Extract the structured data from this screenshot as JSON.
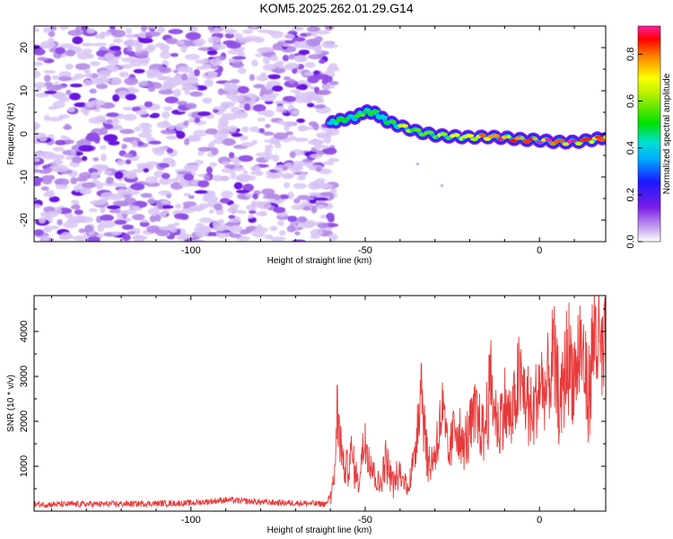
{
  "title": "KOM5.2025.262.01.29.G14",
  "chart_data": [
    {
      "type": "heatmap",
      "xlabel": "Height of straight line (km)",
      "ylabel": "Frequency (Hz)",
      "xlim": [
        -145,
        19
      ],
      "ylim": [
        -25,
        25
      ],
      "xticks": [
        -100,
        -50,
        0
      ],
      "yticks": [
        -20,
        -10,
        0,
        10,
        20
      ],
      "colorbar": {
        "label": "Normalized spectral amplitude",
        "range": [
          0.0,
          0.92
        ],
        "ticks": [
          0.0,
          0.2,
          0.4,
          0.6,
          0.8
        ],
        "tick_labels": [
          "0.0",
          "0.2",
          "0.4",
          "0.6",
          "0.8"
        ]
      },
      "noise_region_x": [
        -145,
        -60
      ],
      "signal_onset_x": -60,
      "ridge": {
        "x": [
          -60,
          -57,
          -53,
          -50,
          -47,
          -44,
          -40,
          -35,
          -30,
          -25,
          -20,
          -15,
          -10,
          -5,
          0,
          5,
          10,
          15,
          19
        ],
        "y": [
          2.5,
          3.2,
          3.8,
          5.2,
          4.8,
          3.0,
          1.8,
          0.5,
          -0.3,
          -0.6,
          -0.8,
          -0.7,
          -0.9,
          -1.3,
          -1.5,
          -1.9,
          -1.9,
          -1.4,
          -0.8
        ],
        "amplitude": [
          0.45,
          0.55,
          0.5,
          0.6,
          0.5,
          0.55,
          0.6,
          0.7,
          0.75,
          0.65,
          0.8,
          0.85,
          0.85,
          0.8,
          0.9,
          0.85,
          0.85,
          0.9,
          0.85
        ]
      },
      "scattered_points": [
        [
          -35,
          -7
        ],
        [
          -28,
          -12
        ]
      ]
    },
    {
      "type": "line",
      "xlabel": "Height of straight line (km)",
      "ylabel": "SNR (10 * v/v)",
      "xlim": [
        -145,
        19
      ],
      "ylim": [
        0,
        4800
      ],
      "xticks": [
        -100,
        -50,
        0
      ],
      "yticks": [
        1000,
        2000,
        3000,
        4000
      ],
      "series": [
        {
          "name": "SNR",
          "color": "#e83a3a",
          "x": [
            -145,
            -120,
            -100,
            -90,
            -80,
            -70,
            -61,
            -59,
            -58,
            -56,
            -54,
            -52,
            -50,
            -48,
            -46,
            -44,
            -42,
            -40,
            -38,
            -36,
            -34,
            -32,
            -30,
            -28,
            -26,
            -24,
            -22,
            -20,
            -18,
            -16,
            -14,
            -12,
            -10,
            -8,
            -6,
            -4,
            -2,
            0,
            2,
            4,
            6,
            8,
            10,
            12,
            14,
            16,
            18,
            19
          ],
          "y": [
            150,
            160,
            180,
            250,
            200,
            180,
            160,
            600,
            2450,
            900,
            1400,
            700,
            1900,
            1100,
            600,
            1300,
            700,
            900,
            600,
            1200,
            3350,
            1100,
            1400,
            2500,
            1300,
            2250,
            1500,
            2000,
            2400,
            1900,
            3150,
            2100,
            2600,
            2200,
            3250,
            2800,
            2300,
            3200,
            2900,
            3800,
            2500,
            3900,
            3300,
            4100,
            2800,
            4600,
            3600,
            4100
          ]
        }
      ]
    }
  ]
}
